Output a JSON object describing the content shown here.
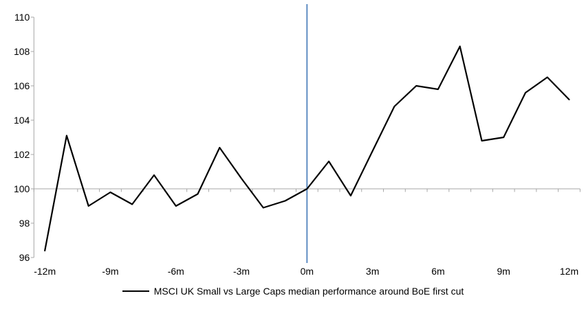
{
  "chart_data": {
    "type": "line",
    "x": [
      -12,
      -11,
      -10,
      -9,
      -8,
      -7,
      -6,
      -5,
      -4,
      -3,
      -2,
      -1,
      0,
      1,
      2,
      3,
      4,
      5,
      6,
      7,
      8,
      9,
      10,
      11,
      12
    ],
    "x_unit": "m",
    "series": [
      {
        "name": "MSCI UK Small vs Large Caps median performance around BoE first cut",
        "color": "#000000",
        "values": [
          96.4,
          103.1,
          99.0,
          99.8,
          99.1,
          100.8,
          99.0,
          99.7,
          102.4,
          100.6,
          98.9,
          99.3,
          100.0,
          101.6,
          99.6,
          102.2,
          104.8,
          106.0,
          105.8,
          108.3,
          102.8,
          103.0,
          105.6,
          106.5,
          105.2
        ]
      }
    ],
    "xtick_labels": [
      "-12m",
      "-9m",
      "-6m",
      "-3m",
      "0m",
      "3m",
      "6m",
      "9m",
      "12m"
    ],
    "xtick_months": [
      -12,
      -9,
      -6,
      -3,
      0,
      3,
      6,
      9,
      12
    ],
    "yticks": [
      96,
      98,
      100,
      102,
      104,
      106,
      108,
      110
    ],
    "ylim": [
      96,
      110
    ],
    "category_axis_at": 100,
    "event_line_at_month": 0,
    "legend_position": "bottom",
    "grid": "off",
    "colors": {
      "axis": "#A6A6A6",
      "event_line": "#4F81BD",
      "text": "#000000",
      "background": "#FFFFFF"
    }
  }
}
